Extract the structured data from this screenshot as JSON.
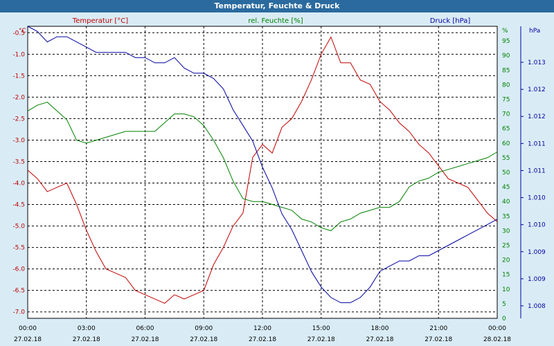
{
  "window": {
    "title": "Temperatur, Feuchte & Druck"
  },
  "colors": {
    "temperature": "#c00000",
    "humidity": "#008000",
    "pressure": "#0000a0",
    "grid": "#000000",
    "plot_bg": "#ffffff",
    "title_bg": "#2a6a9e"
  },
  "chart_data": {
    "type": "line",
    "title": "Temperatur, Feuchte & Druck",
    "grid": true,
    "x": {
      "time_labels": [
        "00:00",
        "03:00",
        "06:00",
        "09:00",
        "12:00",
        "15:00",
        "18:00",
        "21:00",
        "00:00"
      ],
      "date_labels": [
        "27.02.18",
        "27.02.18",
        "27.02.18",
        "27.02.18",
        "27.02.18",
        "27.02.18",
        "27.02.18",
        "27.02.18",
        "28.02.18"
      ]
    },
    "axes": {
      "temperature": {
        "label": "Temperatur [°C]",
        "unit": "°C",
        "ylim": [
          -7.15,
          -0.35
        ],
        "ticks": [
          "-0.5",
          "-1.0",
          "-1.5",
          "-2.0",
          "-2.5",
          "-3.0",
          "-3.5",
          "-4.0",
          "-4.5",
          "-5.0",
          "-5.5",
          "-6.0",
          "-6.5",
          "-7.0"
        ]
      },
      "humidity": {
        "label": "rel. Feuchte [%]",
        "unit": "%",
        "ylim": [
          0,
          100
        ],
        "ticks": [
          "95",
          "90",
          "85",
          "80",
          "75",
          "70",
          "65",
          "60",
          "55",
          "50",
          "45",
          "40",
          "35",
          "30",
          "25",
          "20",
          "15",
          "10",
          "5",
          "0"
        ]
      },
      "pressure": {
        "label": "Druck [hPa]",
        "unit": "hPa",
        "ticks": [
          "1.013",
          "1.012",
          "1.012",
          "1.011",
          "1.011",
          "1.010",
          "1.010",
          "1.009",
          "1.009",
          "1.008"
        ]
      }
    },
    "series": [
      {
        "name": "Temperatur [°C]",
        "axis": "temperature",
        "hours": [
          0,
          0.5,
          1,
          1.5,
          2,
          2.5,
          3,
          3.5,
          4,
          4.5,
          5,
          5.5,
          6,
          6.5,
          7,
          7.5,
          8,
          8.5,
          9,
          9.5,
          10,
          10.5,
          11,
          11.5,
          12,
          12.5,
          13,
          13.5,
          14,
          14.5,
          15,
          15.5,
          16,
          16.5,
          17,
          17.5,
          18,
          18.5,
          19,
          19.5,
          20,
          20.5,
          21,
          21.5,
          22,
          22.5,
          23,
          23.5,
          24
        ],
        "values": [
          -3.7,
          -3.9,
          -4.2,
          -4.1,
          -4.0,
          -4.5,
          -5.1,
          -5.6,
          -6.0,
          -6.1,
          -6.2,
          -6.5,
          -6.6,
          -6.7,
          -6.8,
          -6.6,
          -6.7,
          -6.6,
          -6.5,
          -5.9,
          -5.5,
          -5.0,
          -4.7,
          -3.4,
          -3.1,
          -3.3,
          -2.7,
          -2.5,
          -2.1,
          -1.6,
          -1.0,
          -0.6,
          -1.2,
          -1.2,
          -1.6,
          -1.7,
          -2.1,
          -2.3,
          -2.6,
          -2.8,
          -3.1,
          -3.3,
          -3.6,
          -3.9,
          -4.0,
          -4.1,
          -4.4,
          -4.7,
          -4.9
        ]
      },
      {
        "name": "rel. Feuchte [%]",
        "axis": "humidity",
        "hours": [
          0,
          0.5,
          1,
          1.5,
          2,
          2.5,
          3,
          3.5,
          4,
          4.5,
          5,
          5.5,
          6,
          6.5,
          7,
          7.5,
          8,
          8.5,
          9,
          9.5,
          10,
          10.5,
          11,
          11.5,
          12,
          12.5,
          13,
          13.5,
          14,
          14.5,
          15,
          15.5,
          16,
          16.5,
          17,
          17.5,
          18,
          18.5,
          19,
          19.5,
          20,
          20.5,
          21,
          21.5,
          22,
          22.5,
          23,
          23.5,
          24
        ],
        "values": [
          71,
          73,
          74,
          71,
          68,
          61,
          60,
          61,
          62,
          63,
          64,
          64,
          64,
          64,
          67,
          70,
          70,
          69,
          66,
          61,
          55,
          47,
          41,
          40,
          40,
          39,
          38,
          37,
          34,
          33,
          31,
          30,
          33,
          34,
          36,
          37,
          38,
          38,
          40,
          45,
          47,
          48,
          50,
          51,
          52,
          53,
          54,
          55,
          57
        ]
      },
      {
        "name": "Druck [hPa]",
        "axis": "pressure",
        "hours": [
          0,
          0.5,
          1,
          1.5,
          2,
          2.5,
          3,
          3.5,
          4,
          4.5,
          5,
          5.5,
          6,
          6.5,
          7,
          7.5,
          8,
          8.5,
          9,
          9.5,
          10,
          10.5,
          11,
          11.5,
          12,
          12.5,
          13,
          13.5,
          14,
          14.5,
          15,
          15.5,
          16,
          16.5,
          17,
          17.5,
          18,
          18.5,
          19,
          19.5,
          20,
          20.5,
          21,
          21.5,
          22,
          22.5,
          23,
          23.5,
          24
        ],
        "values": [
          1.0134,
          1.0133,
          1.0131,
          1.0132,
          1.0132,
          1.0131,
          1.013,
          1.0129,
          1.0129,
          1.0129,
          1.0129,
          1.0128,
          1.0128,
          1.0127,
          1.0127,
          1.0128,
          1.0126,
          1.0125,
          1.0125,
          1.0124,
          1.0122,
          1.0118,
          1.0115,
          1.0112,
          1.0107,
          1.0103,
          1.0098,
          1.0095,
          1.0091,
          1.0087,
          1.0084,
          1.0082,
          1.0081,
          1.0081,
          1.0082,
          1.0084,
          1.0087,
          1.0088,
          1.0089,
          1.0089,
          1.009,
          1.009,
          1.0091,
          1.0092,
          1.0093,
          1.0094,
          1.0095,
          1.0096,
          1.0097
        ]
      }
    ]
  }
}
